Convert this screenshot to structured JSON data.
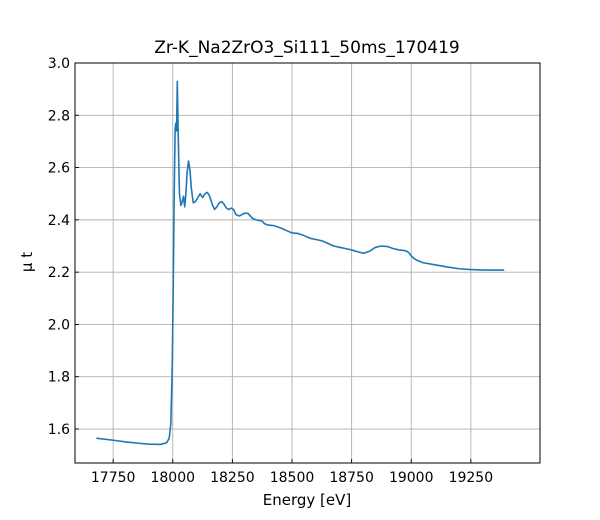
{
  "chart_data": {
    "type": "line",
    "title": "Zr-K_Na2ZrO3_Si111_50ms_170419",
    "xlabel": "Energy [eV]",
    "ylabel": "μ t",
    "xlim": [
      17590,
      19540
    ],
    "ylim": [
      1.47,
      3.0
    ],
    "grid": true,
    "x_ticks": [
      17750,
      18000,
      18250,
      18500,
      18750,
      19000,
      19250
    ],
    "x_tick_labels": [
      "17750",
      "18000",
      "18250",
      "18500",
      "18750",
      "19000",
      "19250"
    ],
    "y_ticks": [
      1.6,
      1.8,
      2.0,
      2.2,
      2.4,
      2.6,
      2.8,
      3.0
    ],
    "y_tick_labels": [
      "1.6",
      "1.8",
      "2.0",
      "2.2",
      "2.4",
      "2.6",
      "2.8",
      "3.0"
    ],
    "series": [
      {
        "color": "#1f77b4",
        "x": [
          17680,
          17750,
          17800,
          17850,
          17900,
          17950,
          17975,
          17985,
          17992,
          17998,
          18002,
          18006,
          18010,
          18013,
          18016,
          18019,
          18023,
          18028,
          18034,
          18040,
          18045,
          18050,
          18055,
          18060,
          18066,
          18072,
          18078,
          18086,
          18095,
          18105,
          18115,
          18125,
          18135,
          18145,
          18155,
          18165,
          18175,
          18185,
          18195,
          18205,
          18215,
          18225,
          18235,
          18245,
          18255,
          18265,
          18280,
          18300,
          18315,
          18325,
          18335,
          18350,
          18360,
          18375,
          18385,
          18400,
          18425,
          18450,
          18475,
          18500,
          18525,
          18550,
          18575,
          18600,
          18625,
          18650,
          18675,
          18700,
          18725,
          18750,
          18775,
          18800,
          18825,
          18850,
          18875,
          18900,
          18925,
          18950,
          18975,
          18985,
          18992,
          18998,
          19005,
          19015,
          19030,
          19050,
          19100,
          19150,
          19200,
          19250,
          19300,
          19350,
          19390
        ],
        "y": [
          1.565,
          1.557,
          1.551,
          1.546,
          1.542,
          1.541,
          1.548,
          1.565,
          1.62,
          1.85,
          2.15,
          2.5,
          2.75,
          2.77,
          2.74,
          2.93,
          2.72,
          2.5,
          2.455,
          2.47,
          2.49,
          2.45,
          2.5,
          2.58,
          2.625,
          2.59,
          2.52,
          2.465,
          2.47,
          2.485,
          2.5,
          2.485,
          2.5,
          2.505,
          2.49,
          2.46,
          2.44,
          2.45,
          2.465,
          2.47,
          2.46,
          2.445,
          2.44,
          2.445,
          2.44,
          2.42,
          2.415,
          2.425,
          2.425,
          2.415,
          2.405,
          2.4,
          2.398,
          2.395,
          2.385,
          2.38,
          2.378,
          2.37,
          2.36,
          2.35,
          2.348,
          2.34,
          2.33,
          2.325,
          2.32,
          2.31,
          2.3,
          2.295,
          2.29,
          2.285,
          2.278,
          2.272,
          2.28,
          2.295,
          2.3,
          2.298,
          2.29,
          2.285,
          2.282,
          2.278,
          2.272,
          2.265,
          2.258,
          2.25,
          2.243,
          2.236,
          2.228,
          2.22,
          2.213,
          2.21,
          2.208,
          2.208,
          2.208
        ]
      }
    ]
  }
}
